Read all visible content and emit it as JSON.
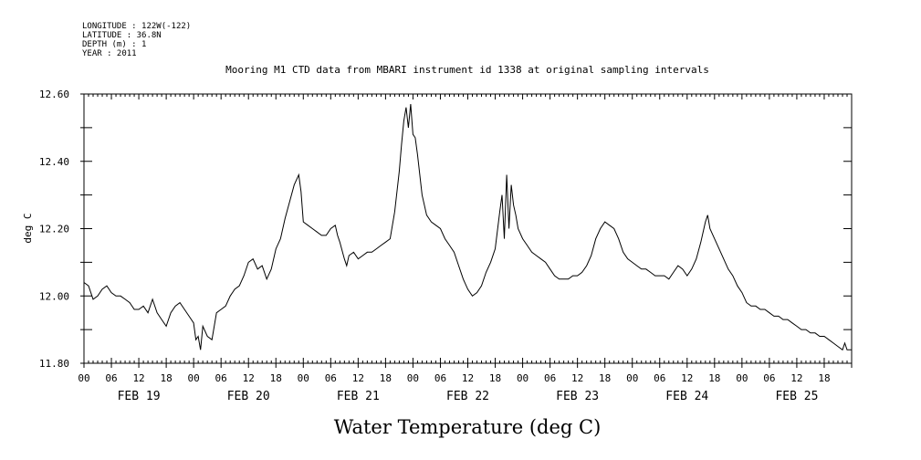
{
  "chart_data": {
    "type": "line",
    "title": "Mooring M1 CTD data from MBARI instrument id 1338 at original sampling intervals",
    "header": {
      "longitude": "LONGITUDE : 122W(-122)",
      "latitude": "LATITUDE : 36.8N",
      "depth": "DEPTH (m) : 1",
      "year": "YEAR : 2011"
    },
    "xlabel": "Water Temperature (deg C)",
    "ylabel": "deg C",
    "ylim": [
      11.8,
      12.6
    ],
    "xlim_hours": [
      0,
      168
    ],
    "y_ticks": [
      {
        "v": 11.8,
        "label": "11.80"
      },
      {
        "v": 12.0,
        "label": "12.00"
      },
      {
        "v": 12.2,
        "label": "12.20"
      },
      {
        "v": 12.4,
        "label": "12.40"
      },
      {
        "v": 12.6,
        "label": "12.60"
      }
    ],
    "hour_labels": [
      "00",
      "06",
      "12",
      "18",
      "00",
      "06",
      "12",
      "18",
      "00",
      "06",
      "12",
      "18",
      "00",
      "06",
      "12",
      "18",
      "00",
      "06",
      "12",
      "18",
      "00",
      "06",
      "12",
      "18",
      "00",
      "06",
      "12",
      "18"
    ],
    "day_labels": [
      "FEB 19",
      "FEB 20",
      "FEB 21",
      "FEB 22",
      "FEB 23",
      "FEB 24",
      "FEB 25"
    ],
    "series": [
      {
        "name": "Water Temperature",
        "points": [
          [
            0,
            12.04
          ],
          [
            1,
            12.03
          ],
          [
            2,
            11.99
          ],
          [
            3,
            12.0
          ],
          [
            4,
            12.02
          ],
          [
            5,
            12.03
          ],
          [
            6,
            12.01
          ],
          [
            7,
            12.0
          ],
          [
            8,
            12.0
          ],
          [
            9,
            11.99
          ],
          [
            10,
            11.98
          ],
          [
            11,
            11.96
          ],
          [
            12,
            11.96
          ],
          [
            13,
            11.97
          ],
          [
            14,
            11.95
          ],
          [
            15,
            11.99
          ],
          [
            16,
            11.95
          ],
          [
            17,
            11.93
          ],
          [
            18,
            11.91
          ],
          [
            19,
            11.95
          ],
          [
            20,
            11.97
          ],
          [
            21,
            11.98
          ],
          [
            22,
            11.96
          ],
          [
            23,
            11.94
          ],
          [
            24,
            11.92
          ],
          [
            24.5,
            11.87
          ],
          [
            25,
            11.88
          ],
          [
            25.5,
            11.84
          ],
          [
            26,
            11.91
          ],
          [
            27,
            11.88
          ],
          [
            28,
            11.87
          ],
          [
            29,
            11.95
          ],
          [
            30,
            11.96
          ],
          [
            31,
            11.97
          ],
          [
            32,
            12.0
          ],
          [
            33,
            12.02
          ],
          [
            34,
            12.03
          ],
          [
            35,
            12.06
          ],
          [
            36,
            12.1
          ],
          [
            37,
            12.11
          ],
          [
            38,
            12.08
          ],
          [
            39,
            12.09
          ],
          [
            40,
            12.05
          ],
          [
            41,
            12.08
          ],
          [
            42,
            12.14
          ],
          [
            43,
            12.17
          ],
          [
            44,
            12.23
          ],
          [
            45,
            12.28
          ],
          [
            46,
            12.33
          ],
          [
            47,
            12.36
          ],
          [
            47.5,
            12.31
          ],
          [
            48,
            12.22
          ],
          [
            49,
            12.21
          ],
          [
            50,
            12.2
          ],
          [
            51,
            12.19
          ],
          [
            52,
            12.18
          ],
          [
            53,
            12.18
          ],
          [
            54,
            12.2
          ],
          [
            55,
            12.21
          ],
          [
            55.5,
            12.18
          ],
          [
            56,
            12.16
          ],
          [
            57,
            12.11
          ],
          [
            57.5,
            12.09
          ],
          [
            58,
            12.12
          ],
          [
            59,
            12.13
          ],
          [
            60,
            12.11
          ],
          [
            61,
            12.12
          ],
          [
            62,
            12.13
          ],
          [
            63,
            12.13
          ],
          [
            64,
            12.14
          ],
          [
            65,
            12.15
          ],
          [
            66,
            12.16
          ],
          [
            67,
            12.17
          ],
          [
            68,
            12.25
          ],
          [
            69,
            12.37
          ],
          [
            69.5,
            12.45
          ],
          [
            70,
            12.52
          ],
          [
            70.5,
            12.56
          ],
          [
            71,
            12.5
          ],
          [
            71.5,
            12.57
          ],
          [
            72,
            12.48
          ],
          [
            72.5,
            12.47
          ],
          [
            73,
            12.42
          ],
          [
            74,
            12.3
          ],
          [
            75,
            12.24
          ],
          [
            76,
            12.22
          ],
          [
            77,
            12.21
          ],
          [
            78,
            12.2
          ],
          [
            79,
            12.17
          ],
          [
            80,
            12.15
          ],
          [
            81,
            12.13
          ],
          [
            82,
            12.09
          ],
          [
            83,
            12.05
          ],
          [
            84,
            12.02
          ],
          [
            85,
            12.0
          ],
          [
            86,
            12.01
          ],
          [
            87,
            12.03
          ],
          [
            88,
            12.07
          ],
          [
            89,
            12.1
          ],
          [
            90,
            12.14
          ],
          [
            91,
            12.25
          ],
          [
            91.5,
            12.3
          ],
          [
            92,
            12.17
          ],
          [
            92.5,
            12.36
          ],
          [
            93,
            12.2
          ],
          [
            93.5,
            12.33
          ],
          [
            94,
            12.27
          ],
          [
            94.5,
            12.24
          ],
          [
            95,
            12.2
          ],
          [
            96,
            12.17
          ],
          [
            97,
            12.15
          ],
          [
            98,
            12.13
          ],
          [
            99,
            12.12
          ],
          [
            100,
            12.11
          ],
          [
            101,
            12.1
          ],
          [
            102,
            12.08
          ],
          [
            103,
            12.06
          ],
          [
            104,
            12.05
          ],
          [
            105,
            12.05
          ],
          [
            106,
            12.05
          ],
          [
            107,
            12.06
          ],
          [
            108,
            12.06
          ],
          [
            109,
            12.07
          ],
          [
            110,
            12.09
          ],
          [
            111,
            12.12
          ],
          [
            112,
            12.17
          ],
          [
            113,
            12.2
          ],
          [
            114,
            12.22
          ],
          [
            115,
            12.21
          ],
          [
            116,
            12.2
          ],
          [
            117,
            12.17
          ],
          [
            118,
            12.13
          ],
          [
            119,
            12.11
          ],
          [
            120,
            12.1
          ],
          [
            121,
            12.09
          ],
          [
            122,
            12.08
          ],
          [
            123,
            12.08
          ],
          [
            124,
            12.07
          ],
          [
            125,
            12.06
          ],
          [
            126,
            12.06
          ],
          [
            127,
            12.06
          ],
          [
            128,
            12.05
          ],
          [
            129,
            12.07
          ],
          [
            130,
            12.09
          ],
          [
            131,
            12.08
          ],
          [
            132,
            12.06
          ],
          [
            133,
            12.08
          ],
          [
            134,
            12.11
          ],
          [
            135,
            12.16
          ],
          [
            136,
            12.22
          ],
          [
            136.5,
            12.24
          ],
          [
            137,
            12.2
          ],
          [
            138,
            12.17
          ],
          [
            139,
            12.14
          ],
          [
            140,
            12.11
          ],
          [
            141,
            12.08
          ],
          [
            142,
            12.06
          ],
          [
            143,
            12.03
          ],
          [
            144,
            12.01
          ],
          [
            145,
            11.98
          ],
          [
            146,
            11.97
          ],
          [
            147,
            11.97
          ],
          [
            148,
            11.96
          ],
          [
            149,
            11.96
          ],
          [
            150,
            11.95
          ],
          [
            151,
            11.94
          ],
          [
            152,
            11.94
          ],
          [
            153,
            11.93
          ],
          [
            154,
            11.93
          ],
          [
            155,
            11.92
          ],
          [
            156,
            11.91
          ],
          [
            157,
            11.9
          ],
          [
            158,
            11.9
          ],
          [
            159,
            11.89
          ],
          [
            160,
            11.89
          ],
          [
            161,
            11.88
          ],
          [
            162,
            11.88
          ],
          [
            163,
            11.87
          ],
          [
            164,
            11.86
          ],
          [
            165,
            11.85
          ],
          [
            166,
            11.84
          ],
          [
            166.5,
            11.86
          ],
          [
            167,
            11.84
          ],
          [
            168,
            11.84
          ]
        ]
      }
    ]
  }
}
